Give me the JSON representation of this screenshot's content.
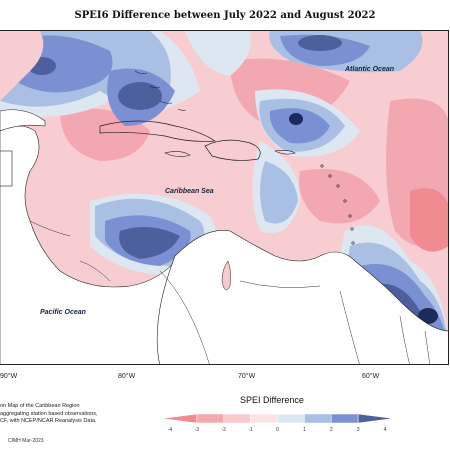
{
  "map": {
    "title": "SPEI6 Difference between July 2022 and August 2022",
    "labels": {
      "atlantic": "Atlantic Ocean",
      "caribbean": "Caribbean Sea",
      "pacific": "Pacific Ocean"
    },
    "longitudes": [
      "90°W",
      "80°W",
      "70°W",
      "60°W"
    ],
    "note_lines": [
      "on Map of the Caribbean Region",
      "aggregating station based observations,",
      "CF, with NCEP/NCAR Reanalysis Data."
    ],
    "credit": "CIMH Mar-2023"
  },
  "legend": {
    "title": "SPEI Difference",
    "ticks": [
      "-4",
      "-3",
      "-2",
      "-1",
      "0",
      "1",
      "2",
      "3",
      "4"
    ],
    "colors": [
      "#f28a92",
      "#f4a9b0",
      "#f8c9cd",
      "#fbe3e6",
      "#dde7f2",
      "#a9bfe4",
      "#7b90d2",
      "#4e5f9e"
    ]
  }
}
